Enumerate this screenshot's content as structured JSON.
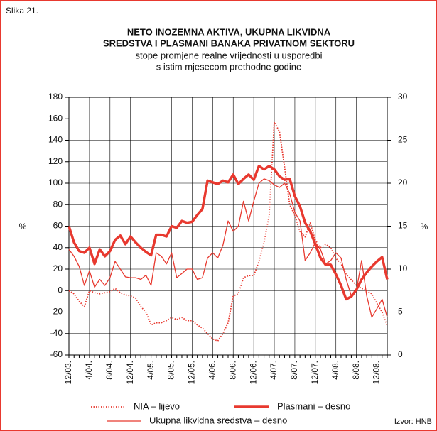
{
  "chart_data": {
    "type": "line",
    "figure_label": "Slika 21.",
    "title_lines": [
      "NETO INOZEMNA AKTIVA, UKUPNA LIKVIDNA",
      "SREDSTVA I PLASMANI BANAKA PRIVATNOM SEKTORU"
    ],
    "subtitle_lines": [
      "stope promjene realne vrijednosti u usporedbi",
      "s istim mjesecom prethodne godine"
    ],
    "y_label": "%",
    "y2_label": "%",
    "source": "Izvor: HNB",
    "categories": [
      "12/03.",
      null,
      null,
      null,
      "4/04.",
      null,
      null,
      null,
      "8/04.",
      null,
      null,
      null,
      "12/04.",
      null,
      null,
      null,
      "4/05.",
      null,
      null,
      null,
      "8/05.",
      null,
      null,
      null,
      "12/05.",
      null,
      null,
      null,
      "4/06.",
      null,
      null,
      null,
      "8/06.",
      null,
      null,
      null,
      "12/06.",
      null,
      null,
      null,
      "4/07.",
      null,
      null,
      null,
      "8/07.",
      null,
      null,
      null,
      "12/07.",
      null,
      null,
      null,
      "4/08.",
      null,
      null,
      null,
      "8/08.",
      null,
      null,
      null,
      "12/08.",
      null,
      null
    ],
    "ylim": [
      -60,
      180
    ],
    "yticks": [
      -60,
      -40,
      -20,
      0,
      20,
      40,
      60,
      80,
      100,
      120,
      140,
      160,
      180
    ],
    "y2lim": [
      0,
      30
    ],
    "y2ticks": [
      0,
      5,
      10,
      15,
      20,
      25,
      30
    ],
    "grid": true,
    "series": [
      {
        "name": "NIA – lijevo",
        "color": "#e8392f",
        "style": "dotted",
        "axis": "y",
        "values": [
          0,
          -3,
          -10,
          -15,
          0,
          -2,
          -3,
          -2,
          -1,
          2,
          -2,
          -4,
          -5,
          -7,
          -15,
          -20,
          -32,
          -30,
          -30,
          -28,
          -25,
          -27,
          -25,
          -28,
          -28,
          -32,
          -35,
          -40,
          -45,
          -47,
          -40,
          -30,
          -5,
          -3,
          12,
          14,
          14,
          27,
          45,
          70,
          157,
          148,
          115,
          80,
          70,
          55,
          50,
          63,
          47,
          40,
          43,
          40,
          30,
          25,
          15,
          10,
          5,
          2,
          0,
          -3,
          -12,
          -20,
          -33
        ]
      },
      {
        "name": "Plasmani – desno",
        "color": "#e8392f",
        "style": "thick",
        "axis": "y2",
        "values": [
          15,
          13.1,
          12.1,
          11.9,
          12.5,
          10.6,
          12.3,
          11.5,
          12.1,
          13.4,
          13.9,
          12.9,
          13.8,
          13.1,
          12.5,
          12,
          11.6,
          14,
          14,
          13.8,
          15,
          14.8,
          15.6,
          15.4,
          15.5,
          16.3,
          17,
          20.3,
          20.1,
          19.9,
          20.3,
          20.1,
          21,
          19.9,
          20.5,
          21,
          20.4,
          22,
          21.6,
          22,
          21.6,
          20.8,
          20.4,
          20.5,
          18.5,
          17.3,
          15.4,
          14.4,
          12.9,
          11.3,
          10.5,
          10.5,
          9.4,
          8.1,
          6.5,
          6.8,
          7.6,
          8.8,
          9.6,
          10.3,
          10.9,
          11.4,
          8.8
        ]
      },
      {
        "name": "Ukupna likvidna sredstva – desno",
        "color": "#e8392f",
        "style": "thin",
        "axis": "y2",
        "values": [
          12.3,
          11.5,
          10.3,
          8.1,
          9.8,
          7.9,
          8.8,
          8.1,
          9,
          10.9,
          10,
          9.1,
          9,
          9,
          8.8,
          9.3,
          8.1,
          11.9,
          11.5,
          10.6,
          11.9,
          9,
          9.5,
          10,
          10,
          8.8,
          9,
          11.3,
          11.9,
          11.3,
          12.8,
          15.6,
          14.4,
          15,
          17.9,
          15.6,
          17.9,
          20,
          20.5,
          20.3,
          19.8,
          19.5,
          20,
          18.8,
          16.6,
          15.6,
          11,
          11.9,
          13.1,
          12.3,
          10.6,
          11,
          11.9,
          11.3,
          8.8,
          6.9,
          7.5,
          11,
          6.9,
          4.4,
          5.4,
          6.5,
          4.4
        ]
      }
    ]
  }
}
